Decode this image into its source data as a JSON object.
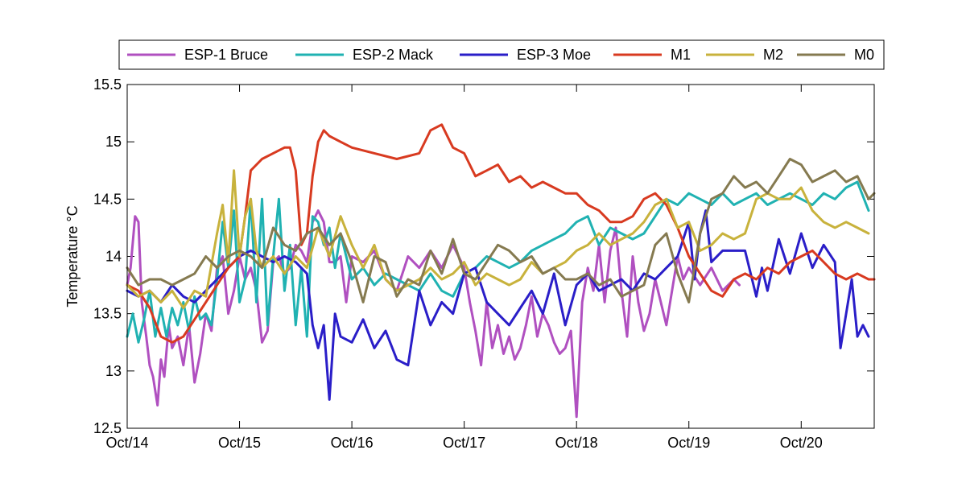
{
  "chart_data": {
    "type": "line",
    "title": "",
    "xlabel": "",
    "ylabel": "Temperature °C",
    "xlim": [
      0,
      6.65
    ],
    "ylim": [
      12.5,
      15.5
    ],
    "xticks": [
      0,
      1,
      2,
      3,
      4,
      5,
      6
    ],
    "xtick_labels": [
      "Oct/14",
      "Oct/15",
      "Oct/16",
      "Oct/17",
      "Oct/18",
      "Oct/19",
      "Oct/20"
    ],
    "yticks": [
      12.5,
      13,
      13.5,
      14,
      14.5,
      15,
      15.5
    ],
    "ytick_labels": [
      "12.5",
      "13",
      "13.5",
      "14",
      "14.5",
      "15",
      "15.5"
    ],
    "legend_position": "top-outside",
    "series": [
      {
        "name": "ESP-1 Bruce",
        "color": "#b050c0",
        "x": [
          0,
          0.03,
          0.07,
          0.1,
          0.13,
          0.17,
          0.2,
          0.23,
          0.27,
          0.3,
          0.33,
          0.37,
          0.4,
          0.45,
          0.5,
          0.55,
          0.6,
          0.65,
          0.7,
          0.75,
          0.8,
          0.85,
          0.9,
          0.95,
          1.0,
          1.05,
          1.1,
          1.15,
          1.2,
          1.25,
          1.3,
          1.35,
          1.4,
          1.45,
          1.5,
          1.55,
          1.6,
          1.65,
          1.7,
          1.75,
          1.8,
          1.85,
          1.9,
          1.95,
          2.0,
          2.1,
          2.2,
          2.3,
          2.4,
          2.5,
          2.6,
          2.7,
          2.8,
          2.9,
          3.0,
          3.05,
          3.1,
          3.15,
          3.2,
          3.25,
          3.3,
          3.35,
          3.4,
          3.45,
          3.5,
          3.55,
          3.6,
          3.65,
          3.7,
          3.75,
          3.8,
          3.85,
          3.9,
          3.95,
          4.0,
          4.05,
          4.1,
          4.15,
          4.2,
          4.25,
          4.3,
          4.35,
          4.4,
          4.45,
          4.5,
          4.55,
          4.6,
          4.65,
          4.7,
          4.75,
          4.8,
          4.85,
          4.9,
          4.95,
          5.0,
          5.1,
          5.2,
          5.3,
          5.4,
          5.45
        ],
        "values": [
          13.75,
          13.9,
          14.35,
          14.3,
          13.6,
          13.3,
          13.05,
          12.95,
          12.7,
          13.1,
          12.95,
          13.4,
          13.2,
          13.3,
          13.05,
          13.4,
          12.9,
          13.15,
          13.5,
          13.35,
          13.9,
          14.0,
          13.5,
          13.7,
          14.0,
          13.8,
          13.9,
          13.7,
          13.25,
          13.35,
          13.95,
          14.0,
          13.85,
          13.9,
          14.1,
          14.05,
          13.95,
          14.3,
          14.4,
          14.3,
          13.95,
          13.95,
          14.0,
          13.6,
          14.0,
          13.95,
          14.05,
          13.8,
          13.7,
          14.0,
          13.9,
          14.05,
          13.9,
          14.1,
          13.9,
          13.6,
          13.35,
          13.05,
          13.6,
          13.2,
          13.4,
          13.15,
          13.3,
          13.1,
          13.2,
          13.4,
          13.65,
          13.3,
          13.5,
          13.4,
          13.25,
          13.15,
          13.2,
          13.35,
          12.6,
          13.6,
          13.9,
          13.7,
          14.1,
          13.6,
          14.05,
          14.25,
          13.7,
          13.3,
          14.0,
          13.6,
          13.35,
          13.5,
          13.8,
          13.6,
          13.4,
          13.7,
          14.0,
          13.8,
          13.9,
          13.75,
          13.9,
          13.7,
          13.8,
          13.75
        ]
      },
      {
        "name": "ESP-2 Mack",
        "color": "#20b2b2",
        "x": [
          0,
          0.05,
          0.1,
          0.15,
          0.2,
          0.25,
          0.3,
          0.35,
          0.4,
          0.45,
          0.5,
          0.55,
          0.6,
          0.65,
          0.7,
          0.75,
          0.8,
          0.85,
          0.9,
          0.95,
          1.0,
          1.05,
          1.1,
          1.15,
          1.2,
          1.25,
          1.3,
          1.35,
          1.4,
          1.45,
          1.5,
          1.55,
          1.6,
          1.65,
          1.7,
          1.75,
          1.8,
          1.85,
          1.9,
          2.0,
          2.1,
          2.2,
          2.3,
          2.4,
          2.5,
          2.6,
          2.7,
          2.8,
          2.9,
          3.0,
          3.1,
          3.2,
          3.3,
          3.4,
          3.5,
          3.6,
          3.7,
          3.8,
          3.9,
          4.0,
          4.1,
          4.2,
          4.3,
          4.4,
          4.5,
          4.6,
          4.7,
          4.8,
          4.9,
          5.0,
          5.1,
          5.2,
          5.3,
          5.4,
          5.5,
          5.6,
          5.7,
          5.8,
          5.9,
          6.0,
          6.1,
          6.2,
          6.3,
          6.4,
          6.5,
          6.6
        ],
        "values": [
          13.3,
          13.5,
          13.25,
          13.45,
          13.7,
          13.3,
          13.55,
          13.3,
          13.55,
          13.4,
          13.6,
          13.35,
          13.65,
          13.45,
          13.5,
          13.4,
          13.8,
          14.3,
          13.9,
          14.4,
          13.6,
          13.8,
          14.5,
          13.6,
          14.5,
          13.4,
          14.0,
          14.5,
          13.7,
          14.1,
          13.4,
          13.9,
          13.3,
          14.35,
          14.3,
          14.1,
          14.25,
          13.9,
          14.2,
          13.8,
          13.9,
          13.75,
          13.85,
          13.8,
          13.75,
          13.7,
          13.85,
          13.7,
          13.65,
          13.85,
          13.9,
          14.0,
          13.95,
          13.9,
          13.95,
          14.05,
          14.1,
          14.15,
          14.2,
          14.3,
          14.35,
          14.1,
          14.25,
          14.2,
          14.15,
          14.2,
          14.35,
          14.5,
          14.45,
          14.55,
          14.5,
          14.45,
          14.55,
          14.45,
          14.5,
          14.55,
          14.45,
          14.5,
          14.55,
          14.5,
          14.45,
          14.55,
          14.5,
          14.6,
          14.65,
          14.4
        ]
      },
      {
        "name": "ESP-3 Moe",
        "color": "#2a1ec8",
        "x": [
          0,
          0.1,
          0.2,
          0.3,
          0.4,
          0.5,
          0.6,
          0.7,
          0.8,
          0.9,
          1.0,
          1.1,
          1.2,
          1.3,
          1.4,
          1.5,
          1.6,
          1.65,
          1.7,
          1.75,
          1.8,
          1.85,
          1.9,
          2.0,
          2.1,
          2.2,
          2.3,
          2.4,
          2.5,
          2.6,
          2.7,
          2.8,
          2.9,
          3.0,
          3.1,
          3.2,
          3.3,
          3.4,
          3.5,
          3.6,
          3.7,
          3.8,
          3.9,
          4.0,
          4.1,
          4.2,
          4.3,
          4.4,
          4.5,
          4.6,
          4.7,
          4.8,
          4.9,
          5.0,
          5.05,
          5.1,
          5.15,
          5.2,
          5.3,
          5.4,
          5.5,
          5.6,
          5.65,
          5.7,
          5.8,
          5.9,
          6.0,
          6.1,
          6.2,
          6.3,
          6.35,
          6.4,
          6.45,
          6.5,
          6.55,
          6.6
        ],
        "values": [
          13.7,
          13.65,
          13.7,
          13.6,
          13.75,
          13.65,
          13.6,
          13.7,
          13.8,
          13.9,
          14.0,
          14.05,
          14.0,
          13.95,
          14.0,
          13.95,
          13.85,
          13.4,
          13.2,
          13.4,
          12.75,
          13.5,
          13.3,
          13.25,
          13.45,
          13.2,
          13.35,
          13.1,
          13.05,
          13.7,
          13.4,
          13.6,
          13.5,
          13.85,
          13.9,
          13.6,
          13.5,
          13.4,
          13.55,
          13.7,
          13.5,
          13.85,
          13.4,
          13.75,
          13.85,
          13.7,
          13.75,
          13.8,
          13.7,
          13.85,
          13.8,
          13.9,
          14.0,
          14.3,
          13.8,
          14.2,
          14.4,
          13.95,
          14.05,
          14.05,
          14.05,
          13.65,
          13.9,
          13.7,
          14.15,
          13.85,
          14.2,
          13.9,
          14.1,
          13.95,
          13.2,
          13.5,
          13.8,
          13.3,
          13.4,
          13.3
        ]
      },
      {
        "name": "M1",
        "color": "#d83a20",
        "x": [
          0,
          0.1,
          0.2,
          0.3,
          0.4,
          0.5,
          0.6,
          0.7,
          0.8,
          0.9,
          1.0,
          1.05,
          1.1,
          1.2,
          1.3,
          1.4,
          1.45,
          1.5,
          1.55,
          1.6,
          1.65,
          1.7,
          1.75,
          1.8,
          1.9,
          2.0,
          2.2,
          2.4,
          2.6,
          2.7,
          2.8,
          2.9,
          3.0,
          3.1,
          3.2,
          3.3,
          3.4,
          3.5,
          3.6,
          3.7,
          3.8,
          3.9,
          4.0,
          4.1,
          4.2,
          4.3,
          4.4,
          4.5,
          4.6,
          4.7,
          4.8,
          4.9,
          5.0,
          5.1,
          5.2,
          5.3,
          5.4,
          5.5,
          5.6,
          5.7,
          5.8,
          5.9,
          6.0,
          6.1,
          6.2,
          6.3,
          6.4,
          6.5,
          6.6,
          6.65
        ],
        "values": [
          13.75,
          13.7,
          13.55,
          13.3,
          13.25,
          13.3,
          13.45,
          13.6,
          13.75,
          13.9,
          14.0,
          14.35,
          14.75,
          14.85,
          14.9,
          14.95,
          14.95,
          14.75,
          14.1,
          14.2,
          14.7,
          15.0,
          15.1,
          15.05,
          15.0,
          14.95,
          14.9,
          14.85,
          14.9,
          15.1,
          15.15,
          14.95,
          14.9,
          14.7,
          14.75,
          14.8,
          14.65,
          14.7,
          14.6,
          14.65,
          14.6,
          14.55,
          14.55,
          14.45,
          14.4,
          14.3,
          14.3,
          14.35,
          14.5,
          14.55,
          14.45,
          14.25,
          14.0,
          13.85,
          13.7,
          13.65,
          13.8,
          13.85,
          13.8,
          13.9,
          13.85,
          13.95,
          14.0,
          14.05,
          13.95,
          13.85,
          13.8,
          13.85,
          13.8,
          13.8
        ]
      },
      {
        "name": "M2",
        "color": "#c8b23c",
        "x": [
          0,
          0.1,
          0.2,
          0.3,
          0.4,
          0.5,
          0.6,
          0.7,
          0.8,
          0.85,
          0.9,
          0.95,
          1.0,
          1.05,
          1.1,
          1.15,
          1.2,
          1.3,
          1.4,
          1.5,
          1.6,
          1.7,
          1.8,
          1.9,
          2.0,
          2.1,
          2.2,
          2.3,
          2.4,
          2.5,
          2.6,
          2.7,
          2.8,
          2.9,
          3.0,
          3.1,
          3.2,
          3.3,
          3.4,
          3.5,
          3.6,
          3.7,
          3.8,
          3.9,
          4.0,
          4.1,
          4.2,
          4.3,
          4.4,
          4.5,
          4.6,
          4.7,
          4.8,
          4.9,
          5.0,
          5.1,
          5.2,
          5.3,
          5.4,
          5.5,
          5.6,
          5.7,
          5.8,
          5.9,
          6.0,
          6.1,
          6.2,
          6.3,
          6.4,
          6.5,
          6.6
        ],
        "values": [
          13.75,
          13.65,
          13.7,
          13.6,
          13.7,
          13.55,
          13.7,
          13.65,
          14.2,
          14.45,
          13.95,
          14.75,
          14.0,
          14.35,
          14.5,
          14.05,
          13.9,
          14.0,
          13.85,
          14.0,
          13.9,
          14.25,
          14.0,
          14.35,
          14.1,
          13.9,
          14.1,
          13.8,
          13.7,
          13.75,
          13.8,
          13.9,
          13.8,
          13.85,
          13.95,
          13.75,
          13.85,
          13.8,
          13.75,
          13.8,
          13.95,
          13.85,
          13.9,
          13.95,
          14.05,
          14.1,
          14.2,
          14.1,
          14.15,
          14.2,
          14.3,
          14.45,
          14.5,
          14.25,
          14.3,
          14.05,
          14.1,
          14.2,
          14.15,
          14.2,
          14.5,
          14.55,
          14.5,
          14.5,
          14.6,
          14.4,
          14.3,
          14.25,
          14.3,
          14.25,
          14.2
        ]
      },
      {
        "name": "M0",
        "color": "#857a50",
        "x": [
          0,
          0.1,
          0.2,
          0.3,
          0.4,
          0.5,
          0.6,
          0.7,
          0.8,
          0.9,
          1.0,
          1.1,
          1.2,
          1.3,
          1.4,
          1.5,
          1.6,
          1.7,
          1.8,
          1.9,
          2.0,
          2.1,
          2.2,
          2.3,
          2.4,
          2.5,
          2.6,
          2.7,
          2.8,
          2.9,
          3.0,
          3.1,
          3.2,
          3.3,
          3.4,
          3.5,
          3.6,
          3.7,
          3.8,
          3.9,
          4.0,
          4.1,
          4.2,
          4.3,
          4.4,
          4.5,
          4.6,
          4.7,
          4.8,
          4.9,
          5.0,
          5.1,
          5.2,
          5.3,
          5.4,
          5.5,
          5.6,
          5.7,
          5.8,
          5.9,
          6.0,
          6.1,
          6.2,
          6.3,
          6.4,
          6.5,
          6.6,
          6.65
        ],
        "values": [
          13.9,
          13.75,
          13.8,
          13.8,
          13.75,
          13.8,
          13.85,
          14.0,
          13.9,
          14.0,
          14.05,
          14.0,
          13.9,
          14.25,
          14.1,
          14.05,
          14.2,
          14.25,
          14.1,
          14.2,
          13.95,
          13.6,
          14.0,
          13.95,
          13.65,
          13.8,
          13.75,
          14.05,
          13.85,
          14.15,
          13.85,
          13.8,
          13.95,
          14.1,
          14.05,
          13.95,
          14.0,
          13.85,
          13.9,
          13.8,
          13.8,
          13.85,
          13.75,
          13.8,
          13.65,
          13.7,
          13.75,
          14.1,
          14.2,
          13.85,
          13.6,
          14.2,
          14.5,
          14.55,
          14.7,
          14.6,
          14.65,
          14.55,
          14.7,
          14.85,
          14.8,
          14.65,
          14.7,
          14.75,
          14.65,
          14.7,
          14.5,
          14.55
        ]
      }
    ]
  }
}
